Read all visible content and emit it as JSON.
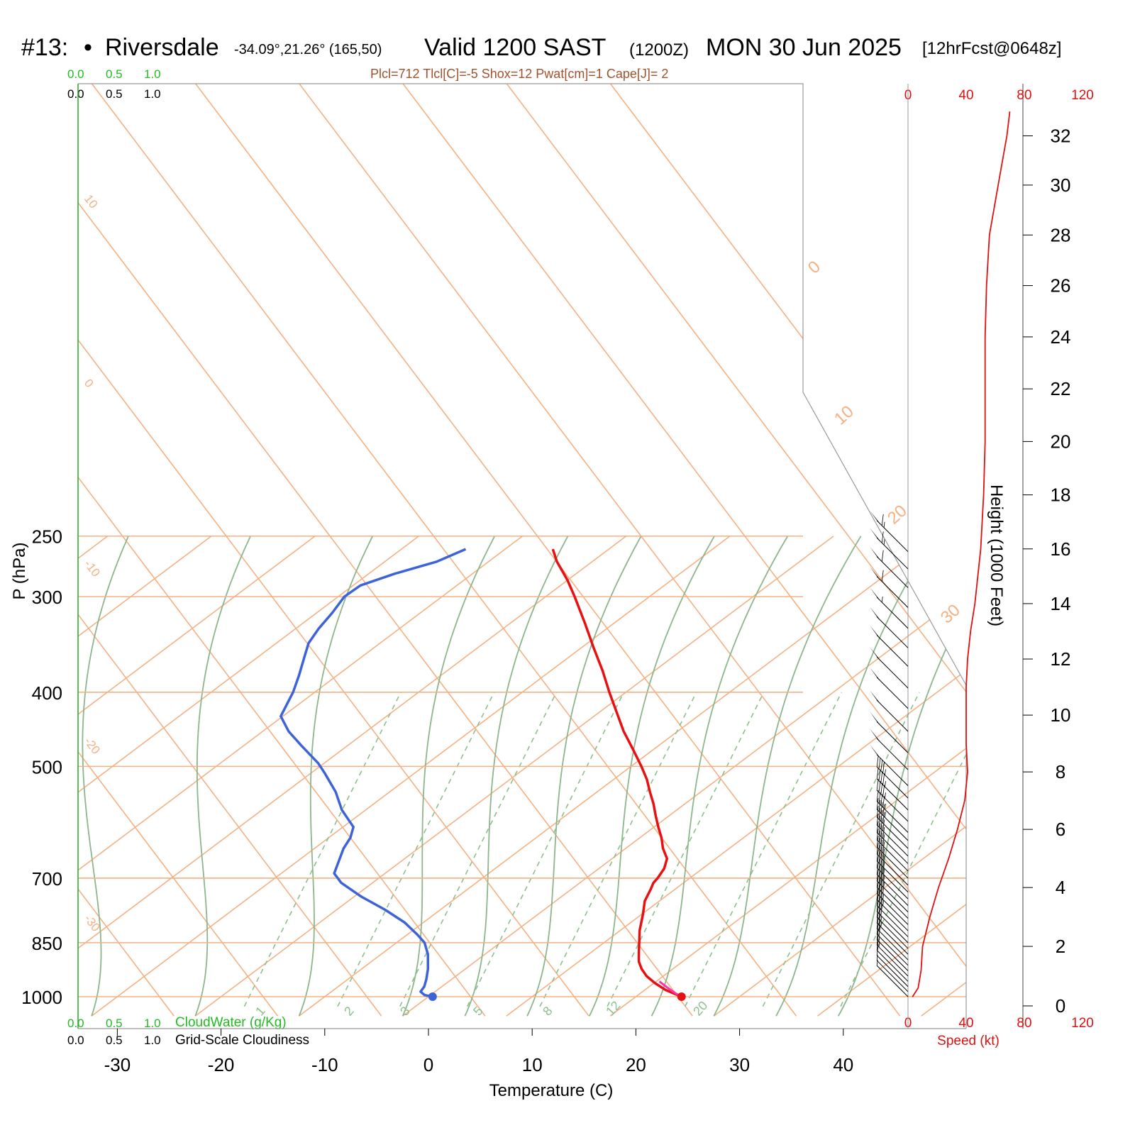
{
  "header": {
    "station_number": "#13:",
    "bullet": "•",
    "station_name": "Riversdale",
    "location": "-34.09°,21.26° (165,50)",
    "valid": "Valid 1200 SAST",
    "zulu": "(1200Z)",
    "date": "MON 30 Jun 2025",
    "forecast": "[12hrFcst@0648z]"
  },
  "params_line": "Plcl=712 Tlcl[C]=-5 Shox=12 Pwat[cm]=1 Cape[J]= 2",
  "scale_labels": {
    "green": [
      "0.0",
      "0.5",
      "1.0"
    ],
    "black": [
      "0.0",
      "0.5",
      "1.0"
    ],
    "cloudwater": "CloudWater (g/Kg)",
    "cloudiness": "Grid-Scale Cloudiness"
  },
  "colors": {
    "isotherm": "#f5b183",
    "dry_adiabat": "#8cb68c",
    "mixing_ratio": "#8cc08c",
    "temperature": "#e81010",
    "dewpoint": "#3d63d8",
    "parcel": "#ff33aa",
    "speed": "#e01010",
    "green_text": "#22bb22",
    "params_text": "#a0522d"
  },
  "chart_data": {
    "type": "skew-t",
    "ylabel": "P (hPa)",
    "xlabel": "Temperature (C)",
    "x_ticks": [
      -30,
      -20,
      -10,
      0,
      10,
      20,
      30,
      40
    ],
    "p_levels": [
      250,
      300,
      400,
      500,
      700,
      850,
      1000
    ],
    "temperature": [
      {
        "p": 1000,
        "t": 24.4
      },
      {
        "p": 980,
        "t": 22.0
      },
      {
        "p": 960,
        "t": 20.1
      },
      {
        "p": 940,
        "t": 18.4
      },
      {
        "p": 920,
        "t": 17.0
      },
      {
        "p": 900,
        "t": 15.8
      },
      {
        "p": 875,
        "t": 14.6
      },
      {
        "p": 850,
        "t": 13.4
      },
      {
        "p": 820,
        "t": 11.9
      },
      {
        "p": 780,
        "t": 10.1
      },
      {
        "p": 750,
        "t": 8.6
      },
      {
        "p": 725,
        "t": 7.7
      },
      {
        "p": 710,
        "t": 7.1
      },
      {
        "p": 700,
        "t": 6.9
      },
      {
        "p": 680,
        "t": 6.3
      },
      {
        "p": 660,
        "t": 5.3
      },
      {
        "p": 640,
        "t": 3.6
      },
      {
        "p": 620,
        "t": 2.1
      },
      {
        "p": 600,
        "t": 0.4
      },
      {
        "p": 580,
        "t": -1.3
      },
      {
        "p": 560,
        "t": -3.0
      },
      {
        "p": 540,
        "t": -4.9
      },
      {
        "p": 520,
        "t": -6.8
      },
      {
        "p": 500,
        "t": -9.0
      },
      {
        "p": 475,
        "t": -12.0
      },
      {
        "p": 450,
        "t": -15.2
      },
      {
        "p": 425,
        "t": -18.3
      },
      {
        "p": 400,
        "t": -21.6
      },
      {
        "p": 375,
        "t": -25.0
      },
      {
        "p": 350,
        "t": -28.8
      },
      {
        "p": 325,
        "t": -32.8
      },
      {
        "p": 300,
        "t": -37.2
      },
      {
        "p": 285,
        "t": -40.1
      },
      {
        "p": 270,
        "t": -43.4
      },
      {
        "p": 260,
        "t": -45.4
      }
    ],
    "dewpoint": [
      {
        "p": 1000,
        "t": 0.4
      },
      {
        "p": 995,
        "t": -0.6
      },
      {
        "p": 985,
        "t": -1.4
      },
      {
        "p": 970,
        "t": -1.7
      },
      {
        "p": 950,
        "t": -2.4
      },
      {
        "p": 920,
        "t": -3.6
      },
      {
        "p": 880,
        "t": -5.5
      },
      {
        "p": 850,
        "t": -7.3
      },
      {
        "p": 830,
        "t": -9.0
      },
      {
        "p": 800,
        "t": -11.8
      },
      {
        "p": 770,
        "t": -15.3
      },
      {
        "p": 740,
        "t": -19.3
      },
      {
        "p": 710,
        "t": -23.0
      },
      {
        "p": 690,
        "t": -24.9
      },
      {
        "p": 670,
        "t": -25.8
      },
      {
        "p": 640,
        "t": -27.2
      },
      {
        "p": 620,
        "t": -27.9
      },
      {
        "p": 600,
        "t": -29.0
      },
      {
        "p": 570,
        "t": -32.3
      },
      {
        "p": 540,
        "t": -35.2
      },
      {
        "p": 510,
        "t": -38.7
      },
      {
        "p": 495,
        "t": -40.6
      },
      {
        "p": 470,
        "t": -44.4
      },
      {
        "p": 450,
        "t": -47.5
      },
      {
        "p": 430,
        "t": -50.2
      },
      {
        "p": 400,
        "t": -52.1
      },
      {
        "p": 380,
        "t": -53.7
      },
      {
        "p": 360,
        "t": -55.5
      },
      {
        "p": 345,
        "t": -56.9
      },
      {
        "p": 330,
        "t": -57.8
      },
      {
        "p": 315,
        "t": -58.5
      },
      {
        "p": 300,
        "t": -59.4
      },
      {
        "p": 290,
        "t": -59.3
      },
      {
        "p": 280,
        "t": -57.5
      },
      {
        "p": 270,
        "t": -55.0
      },
      {
        "p": 260,
        "t": -53.8
      }
    ],
    "parcel": [
      {
        "p": 1000,
        "t": 24.4
      },
      {
        "p": 990,
        "t": 23.4
      },
      {
        "p": 980,
        "t": 22.5
      },
      {
        "p": 970,
        "t": 21.6
      },
      {
        "p": 955,
        "t": 20.3
      }
    ],
    "isotherm_labels": [
      "10",
      "0",
      "-10",
      "-20",
      "-30"
    ],
    "dry_adiabat_labels": [
      "0",
      "10",
      "20",
      "30"
    ],
    "mixing_ratio_labels": [
      "1",
      "2",
      "3",
      "5",
      "8",
      "12",
      "20"
    ],
    "height": {
      "label": "Height (1000 Feet)",
      "ticks": [
        "0",
        "2",
        "4",
        "6",
        "8",
        "10",
        "12",
        "14",
        "16",
        "18",
        "20",
        "22",
        "24",
        "26",
        "28",
        "30",
        "32"
      ]
    },
    "speed": {
      "label": "Speed (kt)",
      "ticks": [
        "0",
        "40",
        "80",
        "120"
      ],
      "profile": [
        {
          "kft": 0.3,
          "kt": 3
        },
        {
          "kft": 0.6,
          "kt": 7
        },
        {
          "kft": 1.2,
          "kt": 9
        },
        {
          "kft": 2.0,
          "kt": 10
        },
        {
          "kft": 3.0,
          "kt": 15
        },
        {
          "kft": 4.0,
          "kt": 21
        },
        {
          "kft": 5.0,
          "kt": 28
        },
        {
          "kft": 6.0,
          "kt": 34
        },
        {
          "kft": 7.0,
          "kt": 39
        },
        {
          "kft": 8.0,
          "kt": 41
        },
        {
          "kft": 9.0,
          "kt": 40
        },
        {
          "kft": 10.0,
          "kt": 40
        },
        {
          "kft": 11.0,
          "kt": 40
        },
        {
          "kft": 12.0,
          "kt": 41
        },
        {
          "kft": 13.0,
          "kt": 43
        },
        {
          "kft": 14.0,
          "kt": 46
        },
        {
          "kft": 16.0,
          "kt": 50
        },
        {
          "kft": 18.0,
          "kt": 52
        },
        {
          "kft": 20.0,
          "kt": 53
        },
        {
          "kft": 22.0,
          "kt": 53
        },
        {
          "kft": 24.0,
          "kt": 53
        },
        {
          "kft": 26.0,
          "kt": 54
        },
        {
          "kft": 28.0,
          "kt": 56
        },
        {
          "kft": 30.0,
          "kt": 62
        },
        {
          "kft": 32.0,
          "kt": 68
        },
        {
          "kft": 33.0,
          "kt": 70
        }
      ]
    },
    "wind_barbs": [
      {
        "p": 1000,
        "dir": 315,
        "kt": 5
      },
      {
        "p": 985,
        "dir": 315,
        "kt": 5
      },
      {
        "p": 970,
        "dir": 310,
        "kt": 10
      },
      {
        "p": 955,
        "dir": 310,
        "kt": 10
      },
      {
        "p": 940,
        "dir": 310,
        "kt": 15
      },
      {
        "p": 925,
        "dir": 310,
        "kt": 15
      },
      {
        "p": 910,
        "dir": 315,
        "kt": 20
      },
      {
        "p": 895,
        "dir": 315,
        "kt": 20
      },
      {
        "p": 880,
        "dir": 315,
        "kt": 25
      },
      {
        "p": 865,
        "dir": 315,
        "kt": 25
      },
      {
        "p": 850,
        "dir": 315,
        "kt": 30
      },
      {
        "p": 835,
        "dir": 315,
        "kt": 30
      },
      {
        "p": 820,
        "dir": 315,
        "kt": 35
      },
      {
        "p": 805,
        "dir": 315,
        "kt": 35
      },
      {
        "p": 790,
        "dir": 315,
        "kt": 40
      },
      {
        "p": 775,
        "dir": 315,
        "kt": 40
      },
      {
        "p": 760,
        "dir": 315,
        "kt": 40
      },
      {
        "p": 745,
        "dir": 315,
        "kt": 40
      },
      {
        "p": 730,
        "dir": 315,
        "kt": 40
      },
      {
        "p": 715,
        "dir": 315,
        "kt": 40
      },
      {
        "p": 700,
        "dir": 315,
        "kt": 40
      },
      {
        "p": 685,
        "dir": 315,
        "kt": 40
      },
      {
        "p": 670,
        "dir": 315,
        "kt": 40
      },
      {
        "p": 655,
        "dir": 315,
        "kt": 40
      },
      {
        "p": 640,
        "dir": 315,
        "kt": 40
      },
      {
        "p": 625,
        "dir": 315,
        "kt": 45
      },
      {
        "p": 610,
        "dir": 315,
        "kt": 45
      },
      {
        "p": 590,
        "dir": 315,
        "kt": 45
      },
      {
        "p": 570,
        "dir": 315,
        "kt": 45
      },
      {
        "p": 550,
        "dir": 315,
        "kt": 45
      },
      {
        "p": 530,
        "dir": 315,
        "kt": 50
      },
      {
        "p": 505,
        "dir": 315,
        "kt": 50
      },
      {
        "p": 480,
        "dir": 315,
        "kt": 50
      },
      {
        "p": 450,
        "dir": 315,
        "kt": 50
      },
      {
        "p": 420,
        "dir": 315,
        "kt": 50
      },
      {
        "p": 395,
        "dir": 315,
        "kt": 50
      },
      {
        "p": 370,
        "dir": 315,
        "kt": 50
      },
      {
        "p": 350,
        "dir": 315,
        "kt": 50
      },
      {
        "p": 330,
        "dir": 315,
        "kt": 55
      },
      {
        "p": 310,
        "dir": 315,
        "kt": 60
      },
      {
        "p": 292,
        "dir": 315,
        "kt": 60
      },
      {
        "p": 276,
        "dir": 315,
        "kt": 65
      },
      {
        "p": 262,
        "dir": 315,
        "kt": 65
      }
    ]
  }
}
